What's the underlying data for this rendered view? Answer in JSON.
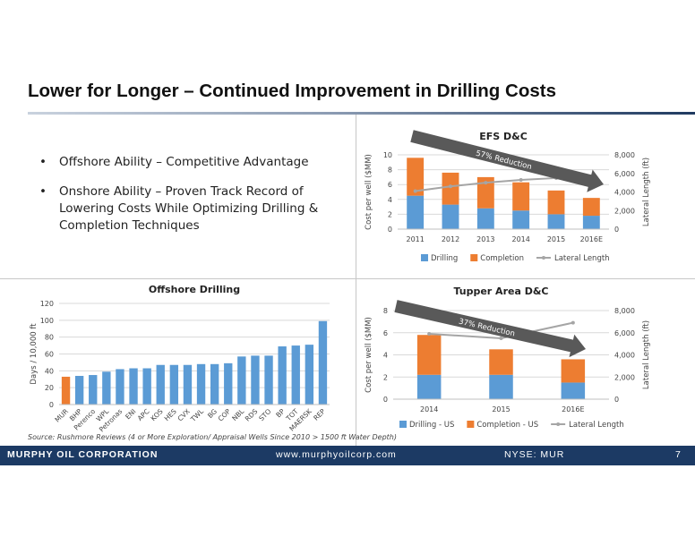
{
  "slide": {
    "title": "Lower for Longer – Continued Improvement in Drilling Costs",
    "bullets": [
      "Offshore Ability – Competitive Advantage",
      "Onshore Ability – Proven Track Record of Lowering Costs While Optimizing Drilling & Completion Techniques"
    ],
    "bullet_symbol": "•",
    "source": "Source: Rushmore Reviews (4 or More Exploration/ Appraisal Wells Since 2010 > 1500 ft Water Depth)"
  },
  "footer": {
    "company": "MURPHY OIL CORPORATION",
    "website": "www.murphyoilcorp.com",
    "ticker": "NYSE: MUR",
    "page": "7"
  },
  "colors": {
    "drilling": "#5b9bd5",
    "completion": "#ed7d31",
    "lateral": "#a5a5a5",
    "arrow": "#595959",
    "footer": "#1c3a64",
    "mur_bar": "#ed7d31"
  },
  "chart_data": [
    {
      "id": "efs",
      "type": "bar",
      "stacked": true,
      "title": "EFS D&C",
      "ylabel": "Cost per well ($MM)",
      "y2label": "Lateral Length (ft)",
      "categories": [
        "2011",
        "2012",
        "2013",
        "2014",
        "2015",
        "2016E"
      ],
      "ylim": [
        0,
        10
      ],
      "yticks": [
        "0",
        "2",
        "4",
        "6",
        "8",
        "10"
      ],
      "y2lim": [
        0,
        8000
      ],
      "y2ticks": [
        "0",
        "2,000",
        "4,000",
        "6,000",
        "8,000"
      ],
      "series": [
        {
          "name": "Drilling",
          "values": [
            4.5,
            3.3,
            2.8,
            2.5,
            2.0,
            1.8
          ]
        },
        {
          "name": "Completion",
          "values": [
            5.1,
            4.3,
            4.2,
            3.8,
            3.2,
            2.4
          ]
        },
        {
          "name": "Lateral Length",
          "axis": "secondary",
          "line": true,
          "values": [
            4100,
            4600,
            5000,
            5300,
            5500,
            5700
          ]
        }
      ],
      "annotation": "57% Reduction",
      "legend_position": "bottom"
    },
    {
      "id": "offshore",
      "type": "bar",
      "title": "Offshore Drilling",
      "ylabel": "Days / 10,000 ft",
      "categories": [
        "MUR",
        "BHP",
        "Perenco",
        "WPL",
        "Petronas",
        "ENI",
        "APC",
        "KOS",
        "HES",
        "CVX",
        "TWL",
        "BG",
        "COP",
        "NBL",
        "RDS",
        "STO",
        "BP",
        "TOT",
        "MAERSK",
        "REP"
      ],
      "ylim": [
        0,
        120
      ],
      "yticks": [
        "0",
        "20",
        "40",
        "60",
        "80",
        "100",
        "120"
      ],
      "values": [
        33,
        34,
        35,
        39,
        42,
        43,
        43,
        47,
        47,
        47,
        48,
        48,
        49,
        57,
        58,
        58,
        69,
        70,
        71,
        99
      ],
      "highlight": "MUR"
    },
    {
      "id": "tupper",
      "type": "bar",
      "stacked": true,
      "title": "Tupper Area D&C",
      "ylabel": "Cost per well ($MM)",
      "y2label": "Lateral Length (ft)",
      "categories": [
        "2014",
        "2015",
        "2016E"
      ],
      "ylim": [
        0,
        8
      ],
      "yticks": [
        "0",
        "2",
        "4",
        "6",
        "8"
      ],
      "y2lim": [
        0,
        8000
      ],
      "y2ticks": [
        "0",
        "2,000",
        "4,000",
        "6,000",
        "8,000"
      ],
      "series": [
        {
          "name": "Drilling - US",
          "values": [
            2.2,
            2.2,
            1.5
          ]
        },
        {
          "name": "Completion - US",
          "values": [
            3.6,
            2.3,
            2.1
          ]
        },
        {
          "name": "Lateral Length",
          "axis": "secondary",
          "line": true,
          "values": [
            5900,
            5500,
            6900
          ]
        }
      ],
      "annotation": "37% Reduction",
      "legend_position": "bottom"
    }
  ]
}
